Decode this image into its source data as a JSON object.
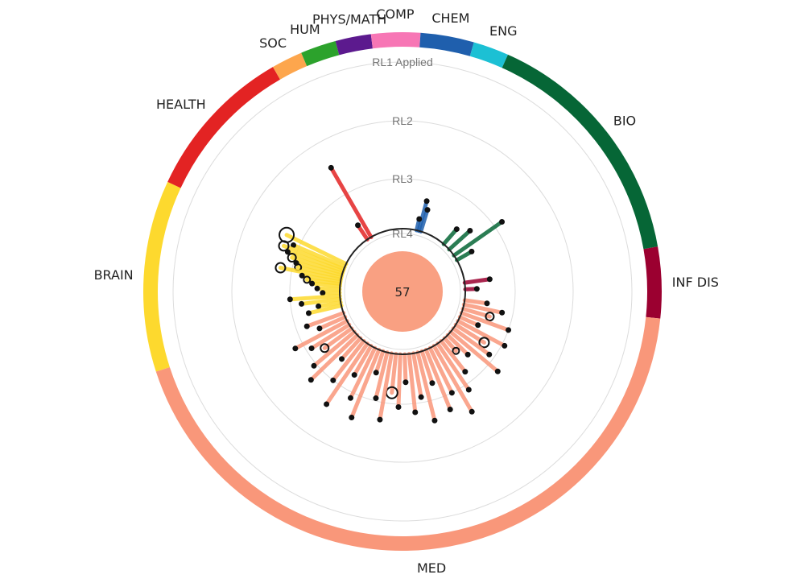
{
  "chart_data": {
    "type": "radial",
    "center_value": "57",
    "center_color": "#f9a082",
    "rings": [
      {
        "label": "RL1 Applied"
      },
      {
        "label": "RL2"
      },
      {
        "label": "RL3"
      },
      {
        "label": "RL4"
      }
    ],
    "segments": [
      {
        "label": "INF DIS",
        "color": "#9b0030",
        "start_deg": 80,
        "end_deg": 96
      },
      {
        "label": "MED",
        "color": "#f9977a",
        "start_deg": 96,
        "end_deg": 252
      },
      {
        "label": "BRAIN",
        "color": "#fdd92e",
        "start_deg": 252,
        "end_deg": 295
      },
      {
        "label": "HEALTH",
        "color": "#e32323",
        "start_deg": 295,
        "end_deg": 330
      },
      {
        "label": "SOC",
        "color": "#fda64d",
        "start_deg": 330,
        "end_deg": 337
      },
      {
        "label": "HUM",
        "color": "#2ca22c",
        "start_deg": 337,
        "end_deg": 345
      },
      {
        "label": "PHYS/MATH",
        "color": "#5c1a8e",
        "start_deg": 345,
        "end_deg": 353
      },
      {
        "label": "COMP",
        "color": "#f776b5",
        "start_deg": 353,
        "end_deg": 4
      },
      {
        "label": "CHEM",
        "color": "#1f5fad",
        "start_deg": 4,
        "end_deg": 16
      },
      {
        "label": "ENG",
        "color": "#1cc0d4",
        "start_deg": 16,
        "end_deg": 24
      },
      {
        "label": "BIO",
        "color": "#066636",
        "start_deg": 24,
        "end_deg": 80
      }
    ],
    "spokes": [
      {
        "segment": "BRAIN",
        "angle": 296,
        "level": 2.72,
        "size": 9
      },
      {
        "segment": "BRAIN",
        "angle": 293,
        "level": 2.9,
        "size": 3
      },
      {
        "segment": "BRAIN",
        "angle": 291,
        "level": 2.75,
        "size": 6
      },
      {
        "segment": "BRAIN",
        "angle": 289,
        "level": 2.85,
        "size": 3
      },
      {
        "segment": "BRAIN",
        "angle": 287,
        "level": 2.95,
        "size": 5
      },
      {
        "segment": "BRAIN",
        "angle": 285,
        "level": 3.05,
        "size": 3
      },
      {
        "segment": "BRAIN",
        "angle": 283,
        "level": 3.1,
        "size": 4
      },
      {
        "segment": "BRAIN",
        "angle": 281,
        "level": 2.8,
        "size": 6
      },
      {
        "segment": "BRAIN",
        "angle": 279,
        "level": 3.2,
        "size": 3
      },
      {
        "segment": "BRAIN",
        "angle": 277,
        "level": 3.3,
        "size": 4
      },
      {
        "segment": "BRAIN",
        "angle": 275,
        "level": 3.4,
        "size": 3
      },
      {
        "segment": "BRAIN",
        "angle": 272,
        "level": 3.5,
        "size": 3
      },
      {
        "segment": "BRAIN",
        "angle": 269,
        "level": 3.6,
        "size": 3
      },
      {
        "segment": "BRAIN",
        "angle": 266,
        "level": 3.0,
        "size": 3
      },
      {
        "segment": "BRAIN",
        "angle": 263,
        "level": 3.2,
        "size": 3
      },
      {
        "segment": "BRAIN",
        "angle": 260,
        "level": 3.5,
        "size": 3
      },
      {
        "segment": "BRAIN",
        "angle": 257,
        "level": 3.3,
        "size": 3
      },
      {
        "segment": "HEALTH",
        "angle": 330,
        "level": 2.48,
        "size": 3
      },
      {
        "segment": "HEALTH",
        "angle": 326,
        "level": 3.6,
        "size": 3
      },
      {
        "segment": "CHEM",
        "angle": 15,
        "level": 3.35,
        "size": 3
      },
      {
        "segment": "CHEM",
        "angle": 17,
        "level": 3.5,
        "size": 3
      },
      {
        "segment": "CHEM",
        "angle": 13,
        "level": 3.7,
        "size": 3
      },
      {
        "segment": "BIO",
        "angle": 41,
        "level": 3.55,
        "size": 3
      },
      {
        "segment": "BIO",
        "angle": 48,
        "level": 3.4,
        "size": 3
      },
      {
        "segment": "BIO",
        "angle": 55,
        "level": 2.85,
        "size": 3
      },
      {
        "segment": "BIO",
        "angle": 60,
        "level": 3.6,
        "size": 3
      },
      {
        "segment": "INF DIS",
        "angle": 82,
        "level": 3.45,
        "size": 3
      },
      {
        "segment": "INF DIS",
        "angle": 88,
        "level": 3.7,
        "size": 3
      },
      {
        "segment": "MED",
        "angle": 98,
        "level": 3.5,
        "size": 3
      },
      {
        "segment": "MED",
        "angle": 102,
        "level": 3.2,
        "size": 3
      },
      {
        "segment": "MED",
        "angle": 106,
        "level": 3.4,
        "size": 5
      },
      {
        "segment": "MED",
        "angle": 110,
        "level": 3.0,
        "size": 3
      },
      {
        "segment": "MED",
        "angle": 114,
        "level": 3.55,
        "size": 3
      },
      {
        "segment": "MED",
        "angle": 118,
        "level": 2.95,
        "size": 3
      },
      {
        "segment": "MED",
        "angle": 122,
        "level": 3.3,
        "size": 6
      },
      {
        "segment": "MED",
        "angle": 126,
        "level": 3.1,
        "size": 3
      },
      {
        "segment": "MED",
        "angle": 130,
        "level": 2.8,
        "size": 3
      },
      {
        "segment": "MED",
        "angle": 134,
        "level": 3.4,
        "size": 3
      },
      {
        "segment": "MED",
        "angle": 138,
        "level": 3.6,
        "size": 4
      },
      {
        "segment": "MED",
        "angle": 142,
        "level": 3.2,
        "size": 3
      },
      {
        "segment": "MED",
        "angle": 146,
        "level": 2.9,
        "size": 3
      },
      {
        "segment": "MED",
        "angle": 150,
        "level": 2.55,
        "size": 3
      },
      {
        "segment": "MED",
        "angle": 154,
        "level": 3.0,
        "size": 3
      },
      {
        "segment": "MED",
        "angle": 158,
        "level": 2.75,
        "size": 3
      },
      {
        "segment": "MED",
        "angle": 162,
        "level": 3.3,
        "size": 3
      },
      {
        "segment": "MED",
        "angle": 166,
        "level": 2.65,
        "size": 3
      },
      {
        "segment": "MED",
        "angle": 170,
        "level": 3.1,
        "size": 3
      },
      {
        "segment": "MED",
        "angle": 174,
        "level": 2.85,
        "size": 3
      },
      {
        "segment": "MED",
        "angle": 178,
        "level": 3.4,
        "size": 3
      },
      {
        "segment": "MED",
        "angle": 182,
        "level": 2.95,
        "size": 3
      },
      {
        "segment": "MED",
        "angle": 186,
        "level": 3.2,
        "size": 7
      },
      {
        "segment": "MED",
        "angle": 190,
        "level": 2.7,
        "size": 3
      },
      {
        "segment": "MED",
        "angle": 194,
        "level": 3.05,
        "size": 3
      },
      {
        "segment": "MED",
        "angle": 198,
        "level": 3.5,
        "size": 3
      },
      {
        "segment": "MED",
        "angle": 202,
        "level": 2.6,
        "size": 3
      },
      {
        "segment": "MED",
        "angle": 206,
        "level": 2.9,
        "size": 3
      },
      {
        "segment": "MED",
        "angle": 210,
        "level": 3.3,
        "size": 3
      },
      {
        "segment": "MED",
        "angle": 214,
        "level": 2.6,
        "size": 3
      },
      {
        "segment": "MED",
        "angle": 218,
        "level": 3.0,
        "size": 3
      },
      {
        "segment": "MED",
        "angle": 222,
        "level": 3.4,
        "size": 3
      },
      {
        "segment": "MED",
        "angle": 226,
        "level": 2.75,
        "size": 3
      },
      {
        "segment": "MED",
        "angle": 230,
        "level": 2.95,
        "size": 3
      },
      {
        "segment": "MED",
        "angle": 234,
        "level": 3.3,
        "size": 5
      },
      {
        "segment": "MED",
        "angle": 238,
        "level": 3.1,
        "size": 3
      },
      {
        "segment": "MED",
        "angle": 242,
        "level": 2.85,
        "size": 3
      },
      {
        "segment": "MED",
        "angle": 246,
        "level": 3.4,
        "size": 3
      },
      {
        "segment": "MED",
        "angle": 250,
        "level": 3.2,
        "size": 3
      }
    ]
  }
}
